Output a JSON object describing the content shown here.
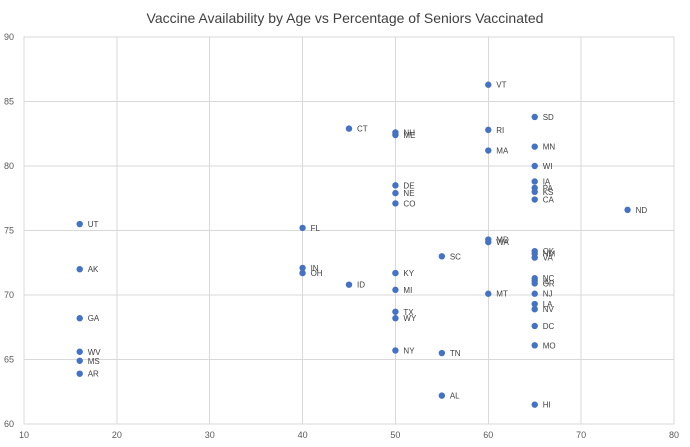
{
  "chart_data": {
    "type": "scatter",
    "title": "Vaccine Availability by Age vs Percentage of Seniors Vaccinated",
    "xlabel": "",
    "ylabel": "",
    "xlim": [
      10,
      80
    ],
    "ylim": [
      60,
      90
    ],
    "x_ticks": [
      10,
      20,
      30,
      40,
      50,
      60,
      70,
      80
    ],
    "y_ticks": [
      60,
      65,
      70,
      75,
      80,
      85,
      90
    ],
    "grid": true,
    "legend": "none",
    "marker_color": "#4472c4",
    "points": [
      {
        "label": "UT",
        "x": 16,
        "y": 75.5
      },
      {
        "label": "AK",
        "x": 16,
        "y": 72.0
      },
      {
        "label": "GA",
        "x": 16,
        "y": 68.2
      },
      {
        "label": "WV",
        "x": 16,
        "y": 65.6
      },
      {
        "label": "MS",
        "x": 16,
        "y": 64.9
      },
      {
        "label": "AR",
        "x": 16,
        "y": 63.9
      },
      {
        "label": "FL",
        "x": 40,
        "y": 75.2
      },
      {
        "label": "IN",
        "x": 40,
        "y": 72.1
      },
      {
        "label": "OH",
        "x": 40,
        "y": 71.7
      },
      {
        "label": "ID",
        "x": 45,
        "y": 70.8
      },
      {
        "label": "CT",
        "x": 45,
        "y": 82.9
      },
      {
        "label": "NH",
        "x": 50,
        "y": 82.6
      },
      {
        "label": "ME",
        "x": 50,
        "y": 82.4
      },
      {
        "label": "DE",
        "x": 50,
        "y": 78.5
      },
      {
        "label": "NE",
        "x": 50,
        "y": 77.9
      },
      {
        "label": "CO",
        "x": 50,
        "y": 77.1
      },
      {
        "label": "KY",
        "x": 50,
        "y": 71.7
      },
      {
        "label": "MI",
        "x": 50,
        "y": 70.4
      },
      {
        "label": "TX",
        "x": 50,
        "y": 68.7
      },
      {
        "label": "WY",
        "x": 50,
        "y": 68.2
      },
      {
        "label": "NY",
        "x": 50,
        "y": 65.7
      },
      {
        "label": "SC",
        "x": 55,
        "y": 73.0
      },
      {
        "label": "TN",
        "x": 55,
        "y": 65.5
      },
      {
        "label": "AL",
        "x": 55,
        "y": 62.2
      },
      {
        "label": "VT",
        "x": 60,
        "y": 86.3
      },
      {
        "label": "RI",
        "x": 60,
        "y": 82.8
      },
      {
        "label": "MA",
        "x": 60,
        "y": 81.2
      },
      {
        "label": "MD",
        "x": 60,
        "y": 74.3
      },
      {
        "label": "WA",
        "x": 60,
        "y": 74.1
      },
      {
        "label": "MT",
        "x": 60,
        "y": 70.1
      },
      {
        "label": "SD",
        "x": 65,
        "y": 83.8
      },
      {
        "label": "MN",
        "x": 65,
        "y": 81.5
      },
      {
        "label": "WI",
        "x": 65,
        "y": 80.0
      },
      {
        "label": "IA",
        "x": 65,
        "y": 78.8
      },
      {
        "label": "PA",
        "x": 65,
        "y": 78.3
      },
      {
        "label": "KS",
        "x": 65,
        "y": 78.0
      },
      {
        "label": "CA",
        "x": 65,
        "y": 77.4
      },
      {
        "label": "OK",
        "x": 65,
        "y": 73.4
      },
      {
        "label": "NM",
        "x": 65,
        "y": 73.2
      },
      {
        "label": "VA",
        "x": 65,
        "y": 72.9
      },
      {
        "label": "NC",
        "x": 65,
        "y": 71.3
      },
      {
        "label": "IL",
        "x": 65,
        "y": 71.1
      },
      {
        "label": "OR",
        "x": 65,
        "y": 70.9
      },
      {
        "label": "NJ",
        "x": 65,
        "y": 70.1
      },
      {
        "label": "LA",
        "x": 65,
        "y": 69.3
      },
      {
        "label": "NV",
        "x": 65,
        "y": 68.9
      },
      {
        "label": "DC",
        "x": 65,
        "y": 67.6
      },
      {
        "label": "MO",
        "x": 65,
        "y": 66.1
      },
      {
        "label": "HI",
        "x": 65,
        "y": 61.5
      },
      {
        "label": "ND",
        "x": 75,
        "y": 76.6
      }
    ]
  }
}
